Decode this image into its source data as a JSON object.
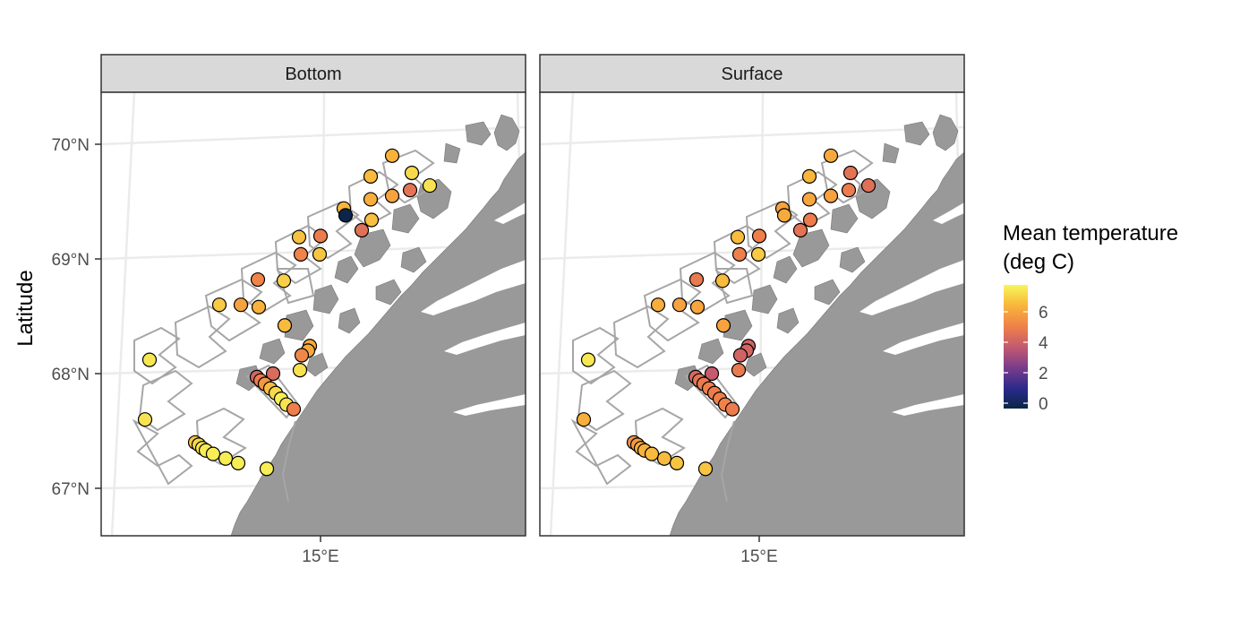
{
  "chart_data": {
    "type": "scatter",
    "kind": "faceted map",
    "panels": [
      {
        "name": "Bottom"
      },
      {
        "name": "Surface"
      }
    ],
    "ylabel": "Latitude",
    "y_ticks": [
      {
        "value": 67,
        "label": "67°N"
      },
      {
        "value": 68,
        "label": "68°N"
      },
      {
        "value": 69,
        "label": "69°N"
      },
      {
        "value": 70,
        "label": "70°N"
      }
    ],
    "x_ticks": [
      {
        "value": 15,
        "label": "15°E"
      }
    ],
    "legend": {
      "title_line1": "Mean temperature",
      "title_line2": "(deg C)",
      "placement": "right",
      "range": [
        -0.3,
        7.8
      ],
      "ticks": [
        {
          "value": 0,
          "label": "0"
        },
        {
          "value": 2,
          "label": "2"
        },
        {
          "value": 4,
          "label": "4"
        },
        {
          "value": 6,
          "label": "6"
        }
      ],
      "colors": [
        "#0b2545",
        "#2a2a8a",
        "#7a3c8c",
        "#c45a6f",
        "#ef7f4a",
        "#f8b43a",
        "#f7f75a"
      ]
    },
    "colors": {
      "panel_border": "#333333",
      "strip_fill": "#d9d9d9",
      "land": "#999999",
      "grid": "#ebebeb",
      "strata_outline": "#a6a6a6",
      "point_outline": "#000000"
    },
    "stations": [
      {
        "y": 69.9,
        "bottom": 6.4,
        "surface": 6.2
      },
      {
        "y": 69.75,
        "bottom": 7.2,
        "surface": 4.7
      },
      {
        "y": 69.72,
        "bottom": 6.6,
        "surface": 6.5
      },
      {
        "y": 69.64,
        "bottom": 7.4,
        "surface": 4.6
      },
      {
        "y": 69.6,
        "bottom": 4.7,
        "surface": 5.0
      },
      {
        "y": 69.55,
        "bottom": 6.0,
        "surface": 6.0
      },
      {
        "y": 69.52,
        "bottom": 6.3,
        "surface": 6.1
      },
      {
        "y": 69.44,
        "bottom": 6.5,
        "surface": 6.0
      },
      {
        "y": 69.38,
        "bottom": -0.2,
        "surface": 6.2
      },
      {
        "y": 69.34,
        "bottom": 6.7,
        "surface": 5.0
      },
      {
        "y": 69.25,
        "bottom": 4.6,
        "surface": 4.7
      },
      {
        "y": 69.2,
        "bottom": 5.0,
        "surface": 5.1
      },
      {
        "y": 69.19,
        "bottom": 6.7,
        "surface": 6.6
      },
      {
        "y": 69.04,
        "bottom": 6.8,
        "surface": 6.9
      },
      {
        "y": 69.04,
        "bottom": 5.2,
        "surface": 5.1
      },
      {
        "y": 68.82,
        "bottom": 5.2,
        "surface": 4.9
      },
      {
        "y": 68.81,
        "bottom": 7.0,
        "surface": 6.6
      },
      {
        "y": 68.6,
        "bottom": 6.9,
        "surface": 6.3
      },
      {
        "y": 68.6,
        "bottom": 6.0,
        "surface": 6.0
      },
      {
        "y": 68.42,
        "bottom": 6.6,
        "surface": 6.0
      },
      {
        "y": 68.58,
        "bottom": 6.4,
        "surface": 6.1
      },
      {
        "y": 68.24,
        "bottom": 6.2,
        "surface": 4.1
      },
      {
        "y": 68.2,
        "bottom": 6.2,
        "surface": 4.2
      },
      {
        "y": 68.16,
        "bottom": 5.3,
        "surface": 4.1
      },
      {
        "y": 68.03,
        "bottom": 7.4,
        "surface": 4.9
      },
      {
        "y": 68.0,
        "bottom": 4.4,
        "surface": 3.8
      },
      {
        "y": 67.97,
        "bottom": 4.2,
        "surface": 4.3
      },
      {
        "y": 67.94,
        "bottom": 5.0,
        "surface": 4.7
      },
      {
        "y": 67.91,
        "bottom": 5.7,
        "surface": 4.9
      },
      {
        "y": 67.87,
        "bottom": 6.6,
        "surface": 5.1
      },
      {
        "y": 67.83,
        "bottom": 7.2,
        "surface": 5.0
      },
      {
        "y": 67.78,
        "bottom": 7.6,
        "surface": 5.1
      },
      {
        "y": 67.73,
        "bottom": 7.4,
        "surface": 5.2
      },
      {
        "y": 67.69,
        "bottom": 5.1,
        "surface": 5.0
      },
      {
        "y": 68.12,
        "bottom": 7.5,
        "surface": 7.5
      },
      {
        "y": 67.6,
        "bottom": 7.4,
        "surface": 6.3
      },
      {
        "y": 67.4,
        "bottom": 6.8,
        "surface": 5.6
      },
      {
        "y": 67.38,
        "bottom": 7.2,
        "surface": 5.8
      },
      {
        "y": 67.35,
        "bottom": 7.4,
        "surface": 6.2
      },
      {
        "y": 67.33,
        "bottom": 7.6,
        "surface": 6.4
      },
      {
        "y": 67.3,
        "bottom": 7.6,
        "surface": 6.6
      },
      {
        "y": 67.26,
        "bottom": 7.6,
        "surface": 6.6
      },
      {
        "y": 67.22,
        "bottom": 7.6,
        "surface": 6.8
      },
      {
        "y": 67.17,
        "bottom": 7.6,
        "surface": 6.8
      }
    ]
  }
}
